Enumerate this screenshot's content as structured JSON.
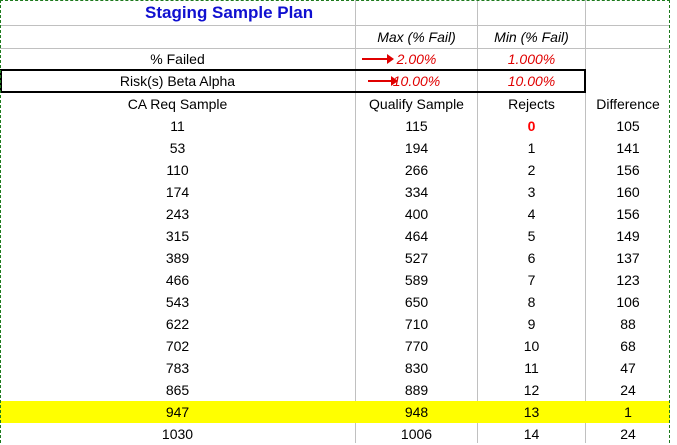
{
  "title": "Staging Sample Plan",
  "headers": {
    "max_label": "Max  (% Fail)",
    "min_label": "Min (% Fail)"
  },
  "failed_row": {
    "label": "% Failed",
    "max_value": "2.00%",
    "min_value": "1.000%"
  },
  "risk_row": {
    "label": "Risk(s) Beta Alpha",
    "max_value": "10.00%",
    "min_value": "10.00%"
  },
  "table": {
    "columns": [
      "CA Req Sample",
      "Qualify Sample",
      "Rejects",
      "Difference"
    ],
    "rows": [
      [
        "11",
        "115",
        "0",
        "105"
      ],
      [
        "53",
        "194",
        "1",
        "141"
      ],
      [
        "110",
        "266",
        "2",
        "156"
      ],
      [
        "174",
        "334",
        "3",
        "160"
      ],
      [
        "243",
        "400",
        "4",
        "156"
      ],
      [
        "315",
        "464",
        "5",
        "149"
      ],
      [
        "389",
        "527",
        "6",
        "137"
      ],
      [
        "466",
        "589",
        "7",
        "123"
      ],
      [
        "543",
        "650",
        "8",
        "106"
      ],
      [
        "622",
        "710",
        "9",
        "88"
      ],
      [
        "702",
        "770",
        "10",
        "68"
      ],
      [
        "783",
        "830",
        "11",
        "47"
      ],
      [
        "865",
        "889",
        "12",
        "24"
      ],
      [
        "947",
        "948",
        "13",
        "1"
      ],
      [
        "1030",
        "1006",
        "14",
        "24"
      ]
    ],
    "highlighted_row_index": 13
  },
  "colors": {
    "title": "#1010d0",
    "red_values": "#e00000",
    "highlight": "#ffff00",
    "grid": "#c0c0c0"
  }
}
